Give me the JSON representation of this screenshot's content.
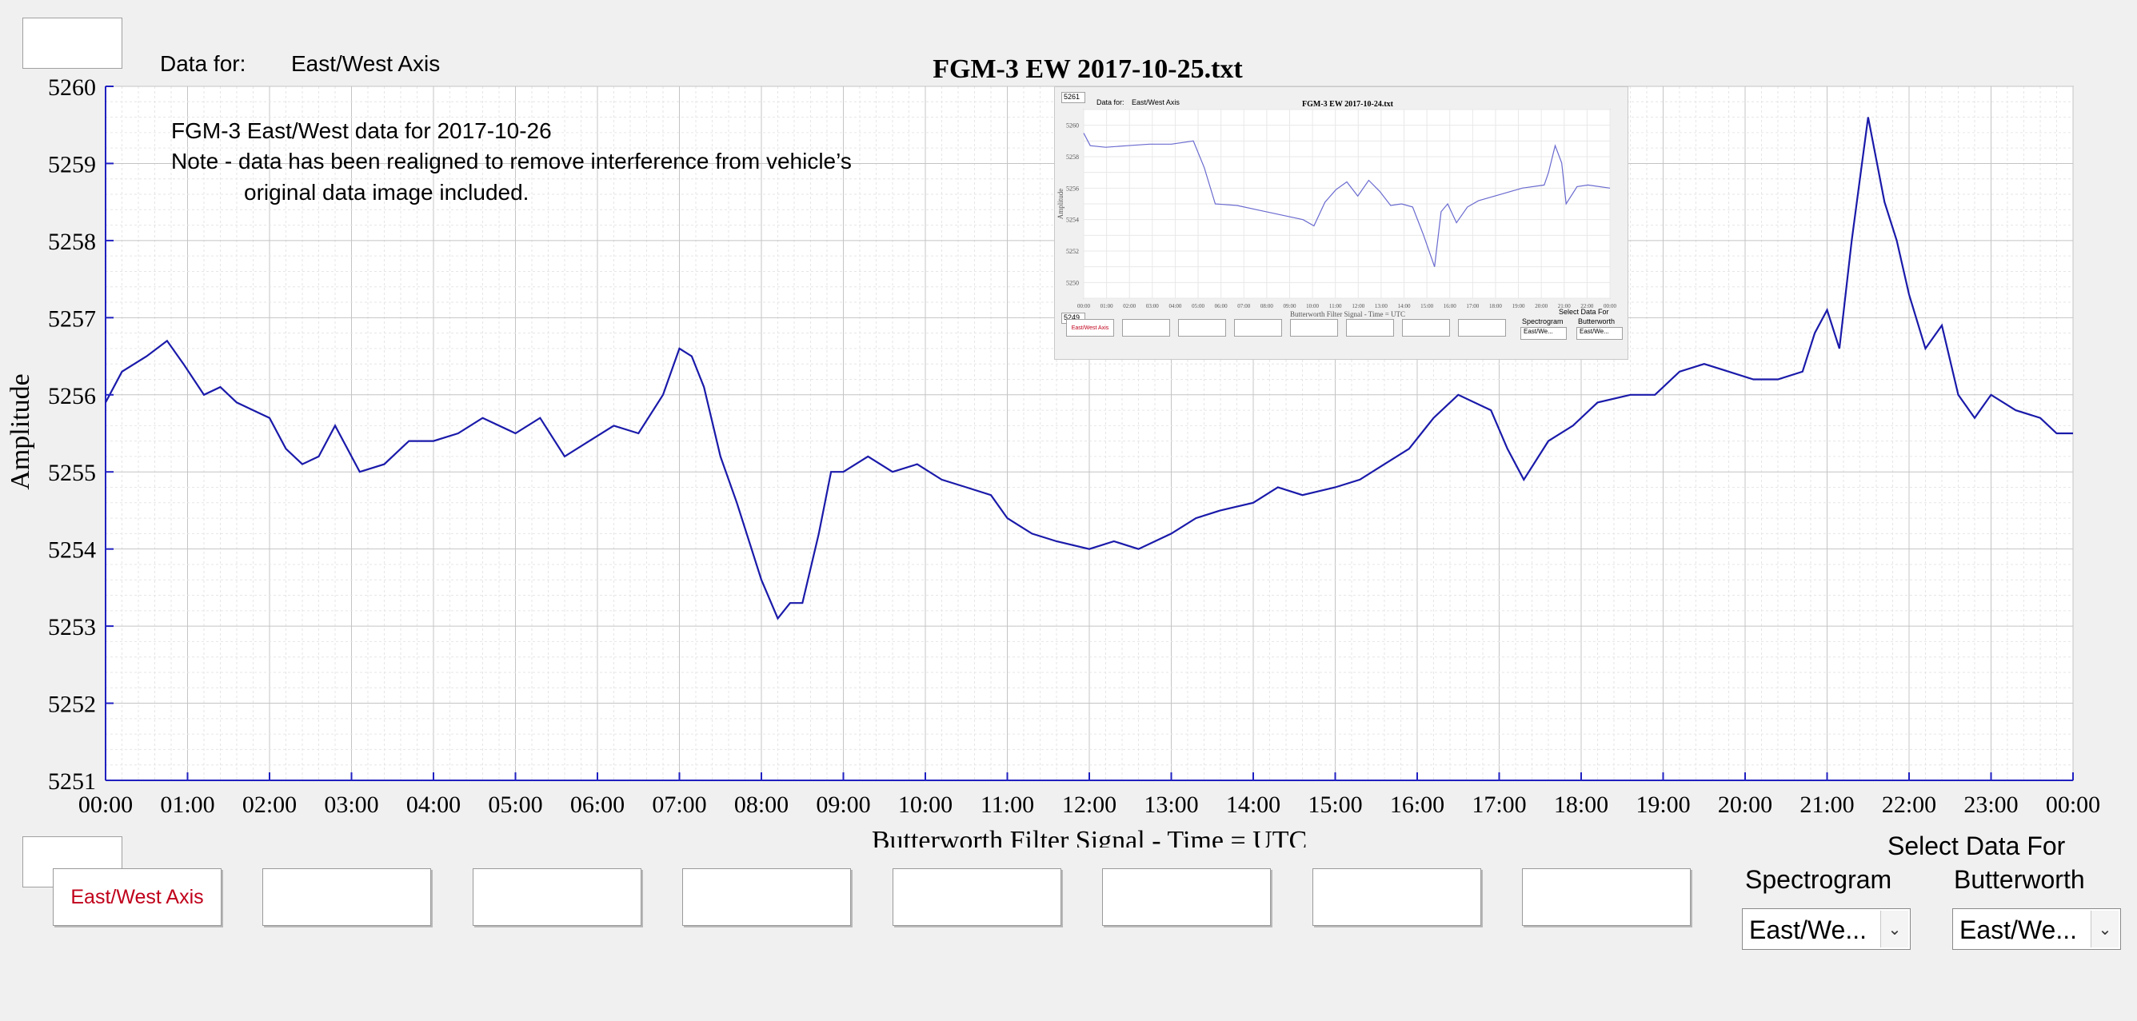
{
  "header": {
    "data_for_label": "Data for:",
    "data_for_value": "East/West Axis",
    "note_line1": "FGM-3 East/West data for 2017-10-26",
    "note_line2": "Note - data has been realigned to remove interference from vehicle’s",
    "note_line3": "original data image included."
  },
  "chart_data": {
    "type": "line",
    "title": "FGM-3 EW 2017-10-25.txt",
    "xlabel": "Butterworth Filter Signal - Time = UTC",
    "ylabel": "Amplitude",
    "ylim": [
      5251,
      5260
    ],
    "yticks": [
      "5251",
      "5252",
      "5253",
      "5254",
      "5255",
      "5256",
      "5257",
      "5258",
      "5259",
      "5260"
    ],
    "xlim": [
      0,
      24
    ],
    "xticks": [
      "00:00",
      "01:00",
      "02:00",
      "03:00",
      "04:00",
      "05:00",
      "06:00",
      "07:00",
      "08:00",
      "09:00",
      "10:00",
      "11:00",
      "12:00",
      "13:00",
      "14:00",
      "15:00",
      "16:00",
      "17:00",
      "18:00",
      "19:00",
      "20:00",
      "21:00",
      "22:00",
      "23:00",
      "00:00"
    ],
    "grid": true,
    "series_color": "#1a1aaa",
    "series": [
      {
        "x": [
          0,
          0.2,
          0.5,
          0.75,
          0.95,
          1.2,
          1.4,
          1.6,
          1.8,
          2.0,
          2.2,
          2.4,
          2.6,
          2.8,
          3.1,
          3.4,
          3.7,
          4.0,
          4.3,
          4.6,
          5.0,
          5.3,
          5.6,
          5.9,
          6.2,
          6.5,
          6.8,
          7.0,
          7.15,
          7.3,
          7.5,
          7.7,
          8.0,
          8.2,
          8.35,
          8.5,
          8.7,
          8.85,
          9.0,
          9.3,
          9.6,
          9.9,
          10.2,
          10.5,
          10.8,
          11.0,
          11.3,
          11.6,
          12.0,
          12.3,
          12.6,
          13.0,
          13.3,
          13.6,
          14.0,
          14.3,
          14.6,
          15.0,
          15.3,
          15.6,
          15.9,
          16.2,
          16.5,
          16.9,
          17.1,
          17.3,
          17.6,
          17.9,
          18.2,
          18.6,
          18.9,
          19.2,
          19.5,
          19.8,
          20.1,
          20.4,
          20.7,
          20.85,
          21.0,
          21.15,
          21.3,
          21.5,
          21.7,
          21.85,
          22.0,
          22.2,
          22.4,
          22.6,
          22.8,
          23.0,
          23.3,
          23.6,
          23.8,
          24.0
        ],
        "values": [
          5255.9,
          5256.3,
          5256.5,
          5256.7,
          5256.4,
          5256.0,
          5256.1,
          5255.9,
          5255.8,
          5255.7,
          5255.3,
          5255.1,
          5255.2,
          5255.6,
          5255.0,
          5255.1,
          5255.4,
          5255.4,
          5255.5,
          5255.7,
          5255.5,
          5255.7,
          5255.2,
          5255.4,
          5255.6,
          5255.5,
          5256.0,
          5256.6,
          5256.5,
          5256.1,
          5255.2,
          5254.6,
          5253.6,
          5253.1,
          5253.3,
          5253.3,
          5254.2,
          5255.0,
          5255.0,
          5255.2,
          5255.0,
          5255.1,
          5254.9,
          5254.8,
          5254.7,
          5254.4,
          5254.2,
          5254.1,
          5254.0,
          5254.1,
          5254.0,
          5254.2,
          5254.4,
          5254.5,
          5254.6,
          5254.8,
          5254.7,
          5254.8,
          5254.9,
          5255.1,
          5255.3,
          5255.7,
          5256.0,
          5255.8,
          5255.3,
          5254.9,
          5255.4,
          5255.6,
          5255.9,
          5256.0,
          5256.0,
          5256.3,
          5256.4,
          5256.3,
          5256.2,
          5256.2,
          5256.3,
          5256.8,
          5257.1,
          5256.6,
          5258.0,
          5259.6,
          5258.5,
          5258.0,
          5257.3,
          5256.6,
          5256.9,
          5256.0,
          5255.7,
          5256.0,
          5255.8,
          5255.7,
          5255.5,
          5255.5
        ]
      }
    ]
  },
  "inset": {
    "title": "FGM-3 EW 2017-10-24.txt",
    "data_for_label": "Data for:",
    "data_for_value": "East/West Axis",
    "top_box_value": "5261",
    "bottom_box_value": "5249",
    "xlabel": "Butterworth Filter Signal - Time = UTC",
    "ylabel": "Amplitude",
    "yticks": [
      "5260",
      "5258",
      "5256",
      "5254",
      "5252",
      "5250"
    ],
    "ylim": [
      5249,
      5261
    ],
    "xticks": [
      "00:00",
      "01:00",
      "02:00",
      "03:00",
      "04:00",
      "05:00",
      "06:00",
      "07:00",
      "08:00",
      "09:00",
      "10:00",
      "11:00",
      "12:00",
      "13:00",
      "14:00",
      "15:00",
      "16:00",
      "17:00",
      "18:00",
      "19:00",
      "20:00",
      "21:00",
      "22:00",
      "00:00"
    ],
    "button_label": "East/West Axis",
    "select_data_for": "Select Data For",
    "spectrogram": "Spectrogram",
    "butterworth": "Butterworth",
    "select_value": "East/We...",
    "x": [
      0,
      0.3,
      1,
      2,
      3,
      4,
      5,
      5.5,
      6,
      7,
      8,
      9,
      10,
      10.5,
      11,
      11.5,
      12,
      12.5,
      13,
      13.5,
      14,
      14.5,
      15,
      15.5,
      16,
      16.3,
      16.6,
      17,
      17.5,
      18,
      19,
      20,
      21,
      21.2,
      21.5,
      21.8,
      22,
      22.5,
      23,
      24
    ],
    "values": [
      5259.5,
      5258.7,
      5258.6,
      5258.7,
      5258.8,
      5258.8,
      5259.0,
      5257.3,
      5255.0,
      5254.9,
      5254.6,
      5254.3,
      5254.0,
      5253.6,
      5255.1,
      5255.9,
      5256.4,
      5255.5,
      5256.5,
      5255.8,
      5254.9,
      5255.0,
      5254.8,
      5253.0,
      5251.0,
      5254.5,
      5255.0,
      5253.8,
      5254.8,
      5255.2,
      5255.6,
      5256.0,
      5256.2,
      5257.0,
      5258.7,
      5257.6,
      5255.0,
      5256.1,
      5256.2,
      5256.0
    ]
  },
  "footer": {
    "buttons": [
      "East/West Axis",
      "",
      "",
      "",
      "",
      "",
      "",
      ""
    ],
    "select_data_for": "Select Data For",
    "spectrogram_label": "Spectrogram",
    "butterworth_label": "Butterworth",
    "spectrogram_value": "East/We...",
    "butterworth_value": "East/We..."
  }
}
